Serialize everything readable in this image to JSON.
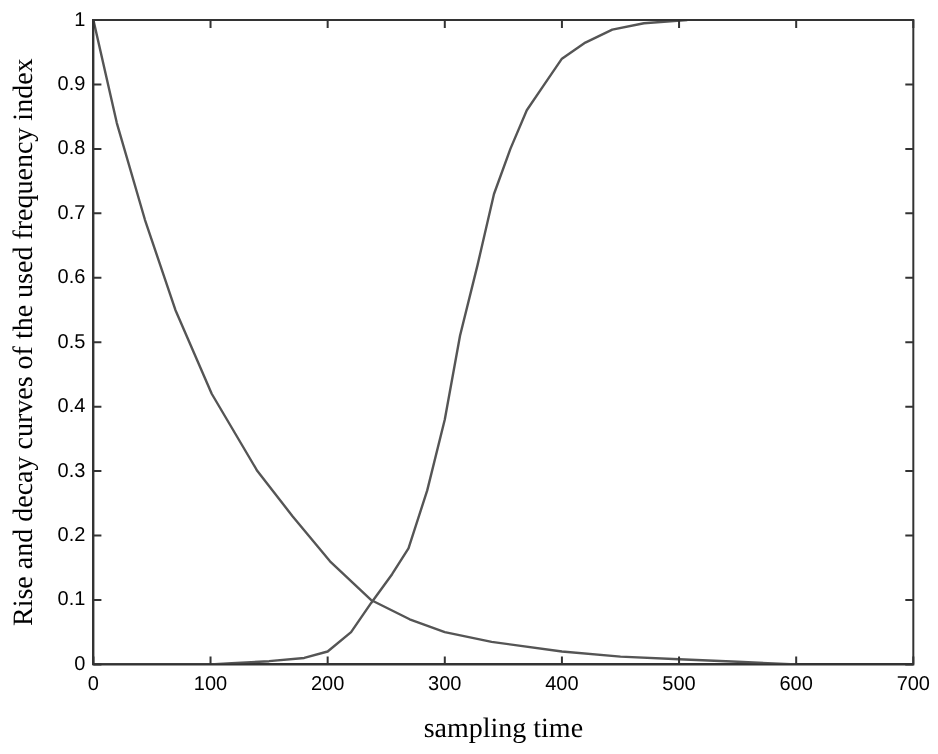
{
  "chart_data": {
    "type": "line",
    "xlabel": "sampling time",
    "ylabel": "Rise and decay curves of the used frequency index",
    "xlim": [
      0,
      700
    ],
    "xticks": [
      0,
      100,
      200,
      300,
      400,
      500,
      600,
      700
    ],
    "ylim": [
      0,
      1
    ],
    "yticks": [
      0,
      0.1,
      0.2,
      0.3,
      0.4,
      0.5,
      0.6,
      0.7,
      0.8,
      0.9,
      1
    ],
    "grid": false,
    "legend": false,
    "marker": "none",
    "line_style": "solid",
    "series": [
      {
        "color": "#555555",
        "x": [
          0,
          20,
          44,
          70,
          101,
          140,
          170,
          202,
          237,
          270,
          300,
          340,
          400,
          450,
          500,
          550,
          600
        ],
        "values": [
          1,
          0.84,
          0.69,
          0.55,
          0.42,
          0.3,
          0.23,
          0.16,
          0.1,
          0.07,
          0.05,
          0.035,
          0.02,
          0.012,
          0.008,
          0.004,
          0
        ]
      },
      {
        "color": "#555555",
        "x": [
          0,
          100,
          118,
          150,
          180,
          200,
          220,
          237,
          255,
          269,
          285,
          300,
          313,
          328,
          342,
          356,
          370,
          385,
          400,
          420,
          443,
          470,
          507
        ],
        "values": [
          0,
          0,
          0.002,
          0.005,
          0.01,
          0.02,
          0.05,
          0.095,
          0.14,
          0.18,
          0.27,
          0.38,
          0.51,
          0.62,
          0.73,
          0.8,
          0.86,
          0.9,
          0.94,
          0.965,
          0.985,
          0.995,
          1
        ]
      }
    ]
  }
}
